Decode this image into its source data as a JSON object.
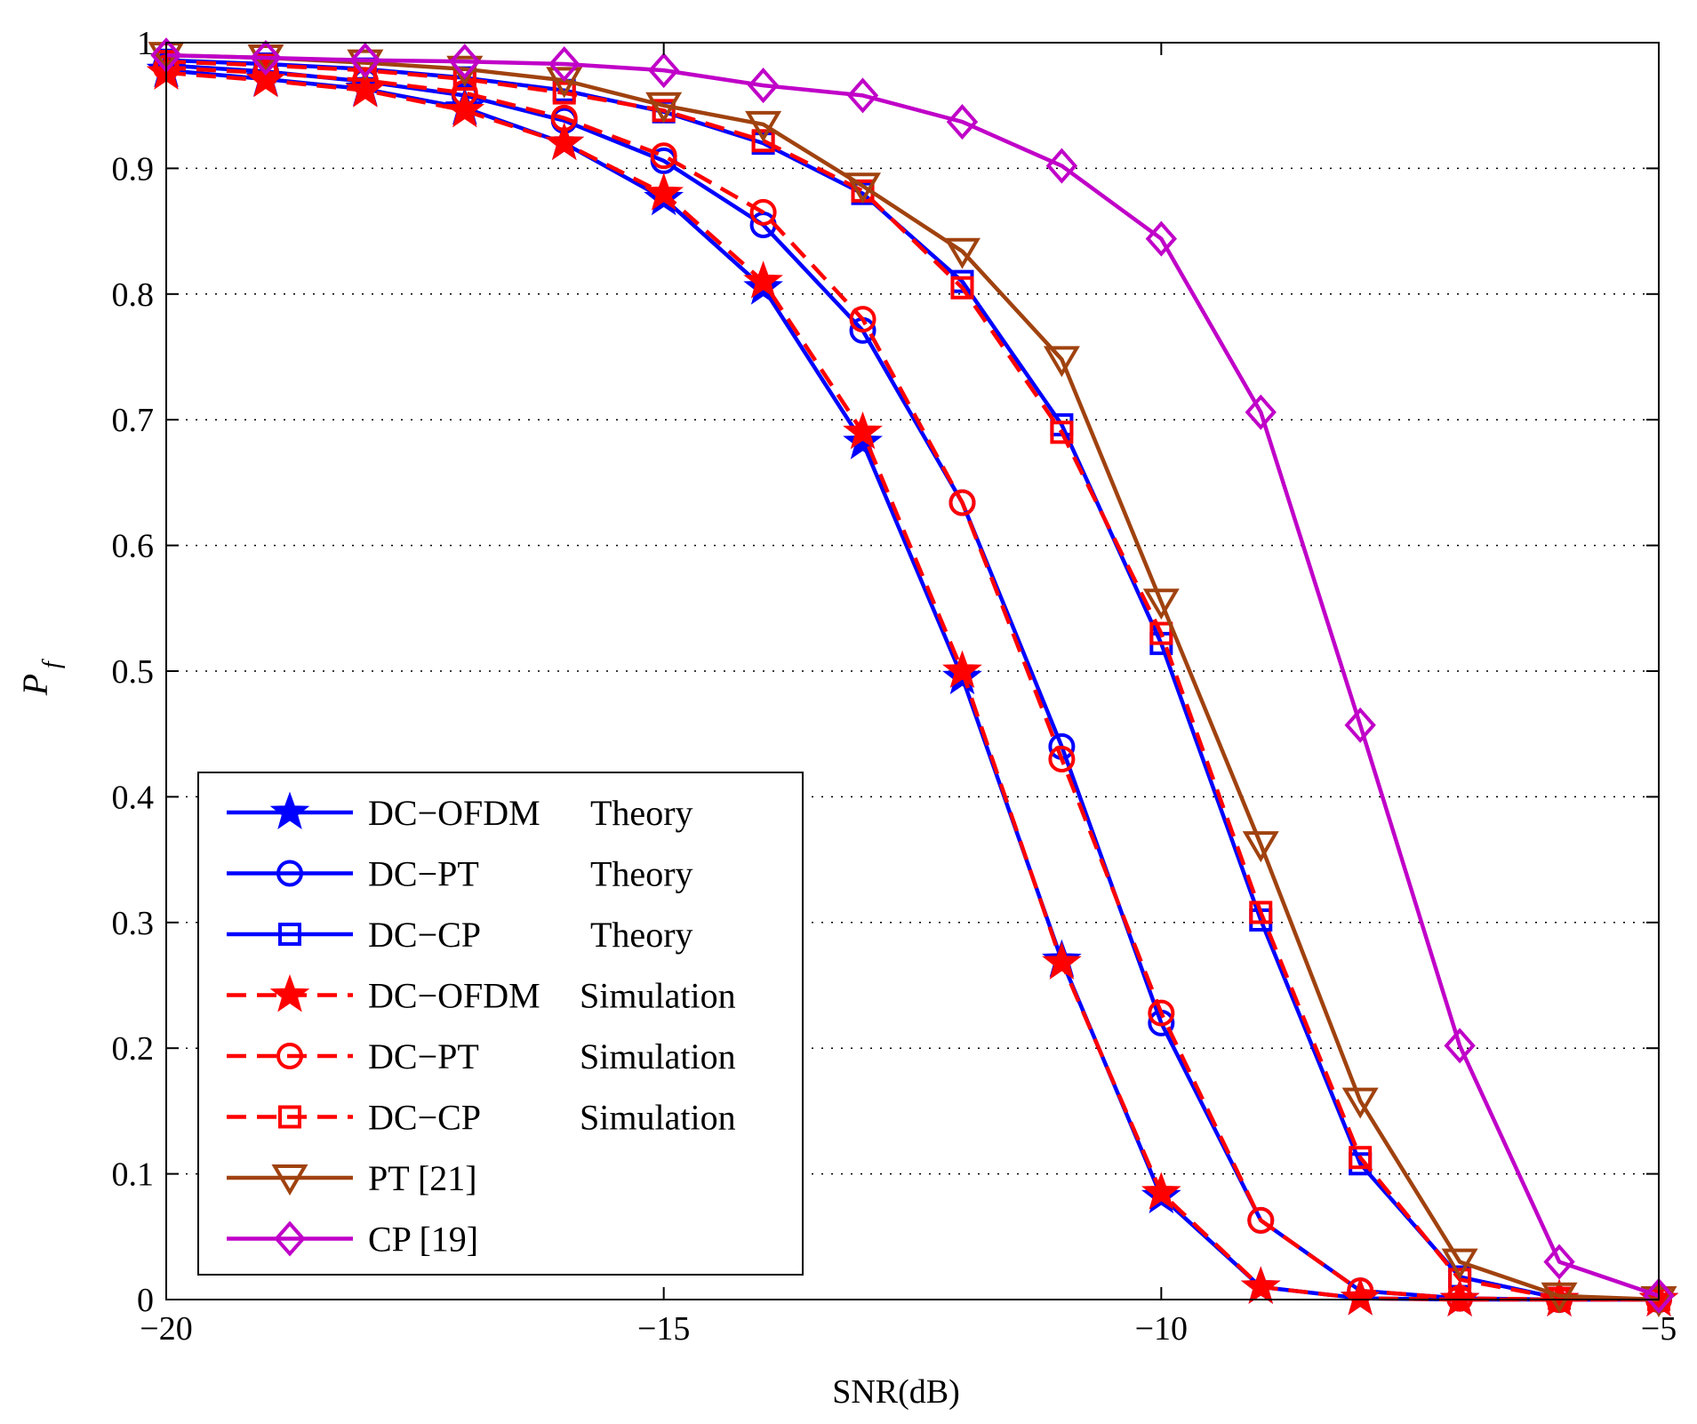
{
  "chart_data": {
    "type": "line",
    "title": "",
    "xlabel": "SNR(dB)",
    "ylabel_main": "P",
    "ylabel_sub": "f",
    "xlim": [
      -20,
      -5
    ],
    "ylim": [
      0,
      1
    ],
    "xticks": [
      -20,
      -15,
      -10,
      -5
    ],
    "xtick_labels": [
      "−20",
      "−15",
      "−10",
      "−5"
    ],
    "yticks": [
      0,
      0.1,
      0.2,
      0.3,
      0.4,
      0.5,
      0.6,
      0.7,
      0.8,
      0.9,
      1
    ],
    "ytick_labels": [
      "0",
      "0.1",
      "0.2",
      "0.3",
      "0.4",
      "0.5",
      "0.6",
      "0.7",
      "0.8",
      "0.9",
      "1"
    ],
    "grid": "horizontal dotted",
    "legend_position": "lower-left",
    "x": [
      -20,
      -19,
      -18,
      -17,
      -16,
      -15,
      -14,
      -13,
      -12,
      -11,
      -10,
      -9,
      -8,
      -7,
      -6,
      -5
    ],
    "series": [
      {
        "name": "DC−OFDM Theory",
        "legend_name": "DC−OFDM",
        "legend_kind": "Theory",
        "color": "#0000ff",
        "dash": "solid",
        "marker": "star",
        "values": [
          0.978,
          0.971,
          0.963,
          0.948,
          0.92,
          0.876,
          0.805,
          0.682,
          0.495,
          0.27,
          0.082,
          0.01,
          0.001,
          0.0,
          0.0,
          0.0
        ]
      },
      {
        "name": "DC−PT Theory",
        "legend_name": "DC−PT",
        "legend_kind": "Theory",
        "color": "#0000ff",
        "dash": "solid",
        "marker": "circle",
        "values": [
          0.982,
          0.977,
          0.969,
          0.958,
          0.938,
          0.906,
          0.855,
          0.771,
          0.634,
          0.44,
          0.22,
          0.063,
          0.007,
          0.001,
          0.0,
          0.0
        ]
      },
      {
        "name": "DC−CP Theory",
        "legend_name": "DC−CP",
        "legend_kind": "Theory",
        "color": "#0000ff",
        "dash": "solid",
        "marker": "square",
        "values": [
          0.986,
          0.983,
          0.979,
          0.972,
          0.962,
          0.945,
          0.92,
          0.88,
          0.81,
          0.696,
          0.522,
          0.302,
          0.108,
          0.018,
          0.001,
          0.0
        ]
      },
      {
        "name": "DC−OFDM Simulation",
        "legend_name": "DC−OFDM",
        "legend_kind": "Simulation",
        "color": "#ff0000",
        "dash": "dashed",
        "marker": "star",
        "values": [
          0.976,
          0.97,
          0.962,
          0.946,
          0.92,
          0.88,
          0.81,
          0.69,
          0.5,
          0.268,
          0.085,
          0.01,
          0.001,
          0.0,
          0.0,
          0.0
        ]
      },
      {
        "name": "DC−PT Simulation",
        "legend_name": "DC−PT",
        "legend_kind": "Simulation",
        "color": "#ff0000",
        "dash": "dashed",
        "marker": "circle",
        "values": [
          0.98,
          0.976,
          0.97,
          0.96,
          0.94,
          0.91,
          0.865,
          0.78,
          0.634,
          0.43,
          0.228,
          0.063,
          0.007,
          0.001,
          0.0,
          0.0
        ]
      },
      {
        "name": "DC−CP Simulation",
        "legend_name": "DC−CP",
        "legend_kind": "Simulation",
        "color": "#ff0000",
        "dash": "dashed",
        "marker": "square",
        "values": [
          0.985,
          0.982,
          0.978,
          0.971,
          0.96,
          0.946,
          0.922,
          0.882,
          0.805,
          0.69,
          0.53,
          0.308,
          0.113,
          0.016,
          0.001,
          0.0
        ]
      },
      {
        "name": "PT [21]",
        "legend_name": "PT [21]",
        "legend_kind": "",
        "color": "#a0420f",
        "dash": "solid",
        "marker": "triangle-down",
        "values": [
          0.99,
          0.988,
          0.984,
          0.979,
          0.97,
          0.95,
          0.935,
          0.886,
          0.834,
          0.748,
          0.555,
          0.362,
          0.158,
          0.03,
          0.003,
          0.0
        ]
      },
      {
        "name": "CP [19]",
        "legend_name": "CP [19]",
        "legend_kind": "",
        "color": "#c000c8",
        "dash": "solid",
        "marker": "diamond",
        "values": [
          0.99,
          0.988,
          0.986,
          0.985,
          0.983,
          0.978,
          0.966,
          0.958,
          0.937,
          0.902,
          0.844,
          0.706,
          0.457,
          0.202,
          0.03,
          0.003
        ]
      }
    ]
  }
}
